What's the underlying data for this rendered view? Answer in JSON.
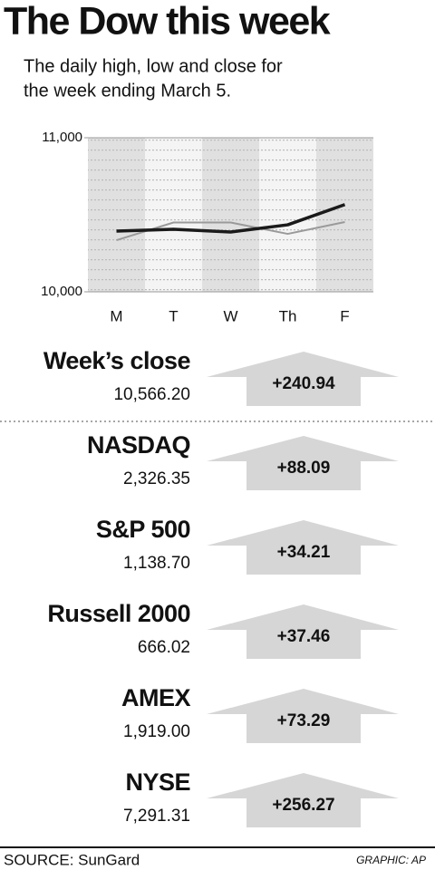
{
  "header": {
    "title": "The Dow this week",
    "subtitle": [
      "The daily high, low and close for",
      "the week ending March 5."
    ]
  },
  "chart_data": {
    "type": "line",
    "categories": [
      "M",
      "T",
      "W",
      "Th",
      "F"
    ],
    "series": [
      {
        "color": "#9a9a9a",
        "values": [
          10335,
          10450,
          10450,
          10376,
          10453
        ]
      },
      {
        "color": "#1a1a1a",
        "values": [
          10394,
          10406,
          10388,
          10435,
          10566
        ]
      }
    ],
    "ylim": [
      10000,
      11000
    ],
    "yticks": [
      {
        "value": 10000,
        "label": "10,000"
      },
      {
        "value": 11000,
        "label": "11,000"
      }
    ]
  },
  "indices": [
    {
      "name": "Week’s close",
      "value": "10,566.20",
      "change": "+240.94"
    },
    {
      "name": "NASDAQ",
      "value": "2,326.35",
      "change": "+88.09"
    },
    {
      "name": "S&P 500",
      "value": "1,138.70",
      "change": "+34.21"
    },
    {
      "name": "Russell 2000",
      "value": "666.02",
      "change": "+37.46"
    },
    {
      "name": "AMEX",
      "value": "1,919.00",
      "change": "+73.29"
    },
    {
      "name": "NYSE",
      "value": "7,291.31",
      "change": "+256.27"
    }
  ],
  "footer": {
    "source": "SOURCE: SunGard",
    "credit": "GRAPHIC: AP"
  }
}
